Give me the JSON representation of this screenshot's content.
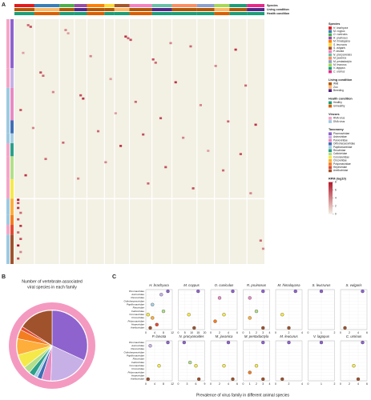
{
  "panel_labels": [
    "A",
    "B",
    "C"
  ],
  "heatmap": {
    "annotation_titles": [
      "Species",
      "Living condition",
      "Health condition"
    ],
    "species_columns": [
      8,
      10,
      6,
      5,
      7,
      4,
      6,
      9,
      8,
      10,
      7,
      6,
      7,
      7
    ],
    "living": [
      0,
      1,
      0,
      2,
      0,
      0,
      1,
      0,
      2,
      0,
      0,
      1,
      0,
      2
    ],
    "health": [
      0,
      1,
      0,
      0,
      1,
      0,
      0,
      1,
      0,
      0,
      0,
      1,
      0,
      0
    ],
    "row_families": [
      30,
      12,
      20,
      8,
      6,
      8,
      14,
      12,
      10,
      6,
      6,
      18
    ],
    "row_virus": [
      0,
      0,
      1,
      1,
      1,
      0,
      0,
      0,
      1,
      1,
      0,
      1
    ],
    "cells": [
      {
        "r": 3,
        "c": 5,
        "v": 5
      },
      {
        "r": 4,
        "c": 6,
        "v": 6
      },
      {
        "r": 6,
        "c": 20,
        "v": 4
      },
      {
        "r": 8,
        "c": 21,
        "v": 3
      },
      {
        "r": 10,
        "c": 44,
        "v": 7
      },
      {
        "r": 11,
        "c": 45,
        "v": 5
      },
      {
        "r": 12,
        "c": 46,
        "v": 6
      },
      {
        "r": 14,
        "c": 62,
        "v": 4
      },
      {
        "r": 16,
        "c": 70,
        "v": 5
      },
      {
        "r": 18,
        "c": 88,
        "v": 7
      },
      {
        "r": 20,
        "c": 3,
        "v": 3
      },
      {
        "r": 22,
        "c": 30,
        "v": 4
      },
      {
        "r": 24,
        "c": 55,
        "v": 6
      },
      {
        "r": 26,
        "c": 56,
        "v": 5
      },
      {
        "r": 28,
        "c": 80,
        "v": 4
      },
      {
        "r": 32,
        "c": 10,
        "v": 6
      },
      {
        "r": 34,
        "c": 11,
        "v": 5
      },
      {
        "r": 36,
        "c": 38,
        "v": 3
      },
      {
        "r": 38,
        "c": 64,
        "v": 7
      },
      {
        "r": 40,
        "c": 92,
        "v": 5
      },
      {
        "r": 44,
        "c": 15,
        "v": 4
      },
      {
        "r": 46,
        "c": 26,
        "v": 6
      },
      {
        "r": 48,
        "c": 27,
        "v": 7
      },
      {
        "r": 50,
        "c": 48,
        "v": 5
      },
      {
        "r": 52,
        "c": 74,
        "v": 4
      },
      {
        "r": 55,
        "c": 2,
        "v": 6
      },
      {
        "r": 57,
        "c": 40,
        "v": 3
      },
      {
        "r": 60,
        "c": 58,
        "v": 6
      },
      {
        "r": 62,
        "c": 85,
        "v": 5
      },
      {
        "r": 64,
        "c": 96,
        "v": 7
      },
      {
        "r": 66,
        "c": 7,
        "v": 4
      },
      {
        "r": 68,
        "c": 33,
        "v": 5
      },
      {
        "r": 70,
        "c": 51,
        "v": 6
      },
      {
        "r": 72,
        "c": 67,
        "v": 4
      },
      {
        "r": 75,
        "c": 19,
        "v": 5
      },
      {
        "r": 77,
        "c": 42,
        "v": 7
      },
      {
        "r": 80,
        "c": 77,
        "v": 3
      },
      {
        "r": 82,
        "c": 90,
        "v": 6
      },
      {
        "r": 85,
        "c": 12,
        "v": 5
      },
      {
        "r": 87,
        "c": 36,
        "v": 4
      },
      {
        "r": 90,
        "c": 60,
        "v": 6
      },
      {
        "r": 92,
        "c": 83,
        "v": 5
      },
      {
        "r": 95,
        "c": 4,
        "v": 7
      },
      {
        "r": 97,
        "c": 25,
        "v": 4
      },
      {
        "r": 100,
        "c": 53,
        "v": 5
      },
      {
        "r": 103,
        "c": 71,
        "v": 6
      },
      {
        "r": 106,
        "c": 94,
        "v": 4
      },
      {
        "r": 110,
        "c": 1,
        "v": 8
      },
      {
        "r": 112,
        "c": 1,
        "v": 6
      },
      {
        "r": 115,
        "c": 1,
        "v": 7
      },
      {
        "r": 118,
        "c": 2,
        "v": 5
      },
      {
        "r": 122,
        "c": 1,
        "v": 6
      },
      {
        "r": 126,
        "c": 2,
        "v": 7
      },
      {
        "r": 130,
        "c": 1,
        "v": 5
      },
      {
        "r": 134,
        "c": 2,
        "v": 6
      },
      {
        "r": 138,
        "c": 1,
        "v": 8
      },
      {
        "r": 142,
        "c": 2,
        "v": 4
      },
      {
        "r": 146,
        "c": 1,
        "v": 6
      },
      {
        "r": 135,
        "c": 98,
        "v": 5
      },
      {
        "r": 140,
        "c": 99,
        "v": 4
      }
    ],
    "scale_title": "RPM (log10)",
    "color_range": [
      0,
      8
    ],
    "scale_ticks": [
      0,
      2,
      4,
      6,
      8
    ],
    "low_color": "#f3f0e4",
    "high_color": "#b2182b"
  },
  "legends": {
    "species": {
      "title": "Species",
      "items": [
        {
          "name": "H. brachyura",
          "color": "#e41a1c"
        },
        {
          "name": "M. coypus",
          "color": "#377eb8"
        },
        {
          "name": "O. cuniculus",
          "color": "#4daf4a"
        },
        {
          "name": "R. pruinosus",
          "color": "#984ea3"
        },
        {
          "name": "M. himalayana",
          "color": "#ff7f00"
        },
        {
          "name": "S. leucrurus",
          "color": "#ffd92f"
        },
        {
          "name": "S. vulgaris",
          "color": "#a65628"
        },
        {
          "name": "P. larvata",
          "color": "#f781bf"
        },
        {
          "name": "N. procyonoides",
          "color": "#66c2a5"
        },
        {
          "name": "M. javanica",
          "color": "#fc8d62"
        },
        {
          "name": "M. pentadactyla",
          "color": "#8da0cb"
        },
        {
          "name": "M. leucurus",
          "color": "#a6d854"
        },
        {
          "name": "V. lagopus",
          "color": "#1b9e77"
        },
        {
          "name": "C. ursinus",
          "color": "#e7298a"
        }
      ]
    },
    "living": {
      "title": "Living condition",
      "items": [
        {
          "name": "Wild",
          "color": "#b35806"
        },
        {
          "name": "Zoo",
          "color": "#fdb863"
        },
        {
          "name": "Breeding",
          "color": "#542788"
        }
      ]
    },
    "health": {
      "title": "Health condition",
      "items": [
        {
          "name": "Healthy",
          "color": "#1b9e77"
        },
        {
          "name": "Unhealthy",
          "color": "#d95f02"
        }
      ]
    },
    "viruses": {
      "title": "Viruses",
      "items": [
        {
          "name": "RNA virus",
          "color": "#f4a6c8"
        },
        {
          "name": "DNA virus",
          "color": "#9ecae1"
        }
      ]
    },
    "taxonomy": {
      "title": "Taxonomy",
      "items": [
        {
          "name": "Picornaviridae",
          "color": "#8e63ce"
        },
        {
          "name": "Astroviridae",
          "color": "#c7b0e6"
        },
        {
          "name": "Parvoviridae",
          "color": "#e78ac3"
        },
        {
          "name": "Orthoherpesviridae",
          "color": "#3f6fb5"
        },
        {
          "name": "Papillomaviridae",
          "color": "#a6cee3"
        },
        {
          "name": "Reoviridae",
          "color": "#2ca089"
        },
        {
          "name": "Caliciviridae",
          "color": "#b2df8a"
        },
        {
          "name": "Coronaviridae",
          "color": "#f5e94a"
        },
        {
          "name": "Circoviridae",
          "color": "#fdae3b"
        },
        {
          "name": "Polyomaviridae",
          "color": "#f47d20"
        },
        {
          "name": "Hepeviridae",
          "color": "#e34a33"
        },
        {
          "name": "Anelloviridae",
          "color": "#a0522d"
        }
      ]
    }
  },
  "pie": {
    "title_lines": [
      "Number of vertebrate-associated",
      "viral species in each family"
    ],
    "values": [
      60,
      35,
      8,
      4,
      3,
      5,
      6,
      12,
      14,
      8,
      3,
      30
    ],
    "ring_color": "#f49ac1"
  },
  "dots": {
    "x_label": "Prevalence of virus family in different animal species",
    "plots": [
      {
        "title": "H. brachyura",
        "xlim": [
          0,
          12
        ],
        "xticks": [
          0,
          4,
          8,
          12
        ],
        "values": [
          10,
          7,
          null,
          null,
          3,
          null,
          8,
          1,
          3,
          null,
          5,
          2
        ]
      },
      {
        "title": "M. coypus",
        "xlim": [
          0,
          20
        ],
        "xticks": [
          0,
          5,
          10,
          15,
          20
        ],
        "values": [
          15,
          null,
          null,
          null,
          null,
          null,
          null,
          8,
          null,
          null,
          null,
          12
        ]
      },
      {
        "title": "O. cuniculus",
        "xlim": [
          0,
          6
        ],
        "xticks": [
          0,
          2,
          4,
          6
        ],
        "values": [
          5,
          null,
          2,
          null,
          null,
          null,
          null,
          3,
          null,
          1,
          null,
          null
        ]
      },
      {
        "title": "R. pruinosus",
        "xlim": [
          0,
          4
        ],
        "xticks": [
          0,
          1,
          2,
          3,
          4
        ],
        "values": [
          3,
          null,
          1,
          null,
          null,
          null,
          2,
          null,
          1,
          null,
          null,
          3
        ]
      },
      {
        "title": "M. himalayana",
        "xlim": [
          0,
          4
        ],
        "xticks": [
          0,
          2,
          4
        ],
        "values": [
          3,
          null,
          null,
          null,
          null,
          null,
          null,
          1,
          null,
          null,
          null,
          2
        ]
      },
      {
        "title": "S. leucrurus",
        "xlim": [
          0,
          2
        ],
        "xticks": [
          0,
          1,
          2
        ],
        "values": [
          1,
          null,
          null,
          null,
          null,
          null,
          null,
          null,
          null,
          null,
          null,
          null
        ]
      },
      {
        "title": "S. vulgaris",
        "xlim": [
          0,
          6
        ],
        "xticks": [
          0,
          2,
          4,
          6
        ],
        "values": [
          5,
          null,
          null,
          null,
          null,
          null,
          null,
          null,
          null,
          null,
          null,
          1
        ]
      },
      {
        "title": "P. larvata",
        "xlim": [
          0,
          12
        ],
        "xticks": [
          0,
          4,
          8,
          12
        ],
        "values": [
          10,
          2,
          null,
          null,
          null,
          null,
          null,
          6,
          null,
          null,
          null,
          1
        ]
      },
      {
        "title": "N. procyonoides",
        "xlim": [
          0,
          9
        ],
        "xticks": [
          0,
          3,
          6,
          9
        ],
        "values": [
          2,
          null,
          null,
          null,
          null,
          null,
          4,
          6,
          null,
          null,
          null,
          7
        ]
      },
      {
        "title": "M. javanica",
        "xlim": [
          0,
          6
        ],
        "xticks": [
          0,
          2,
          4,
          6
        ],
        "values": [
          4,
          null,
          null,
          null,
          null,
          null,
          null,
          3,
          null,
          null,
          null,
          5
        ]
      },
      {
        "title": "M. pentadactyla",
        "xlim": [
          0,
          4
        ],
        "xticks": [
          0,
          1,
          2,
          3,
          4
        ],
        "values": [
          3,
          null,
          null,
          null,
          null,
          null,
          null,
          2,
          null,
          1,
          null,
          3
        ]
      },
      {
        "title": "M. leucurus",
        "xlim": [
          0,
          4
        ],
        "xticks": [
          0,
          2,
          4
        ],
        "values": [
          2,
          null,
          null,
          null,
          null,
          null,
          null,
          null,
          null,
          null,
          null,
          1
        ]
      },
      {
        "title": "V. lagopus",
        "xlim": [
          0,
          2
        ],
        "xticks": [
          0,
          1,
          2
        ],
        "values": [
          1,
          null,
          null,
          null,
          null,
          null,
          null,
          null,
          null,
          null,
          null,
          null
        ]
      },
      {
        "title": "C. ursinus",
        "xlim": [
          0,
          6
        ],
        "xticks": [
          0,
          2,
          4,
          6
        ],
        "values": [
          5,
          null,
          null,
          null,
          null,
          null,
          null,
          3,
          null,
          null,
          null,
          4
        ]
      }
    ]
  }
}
